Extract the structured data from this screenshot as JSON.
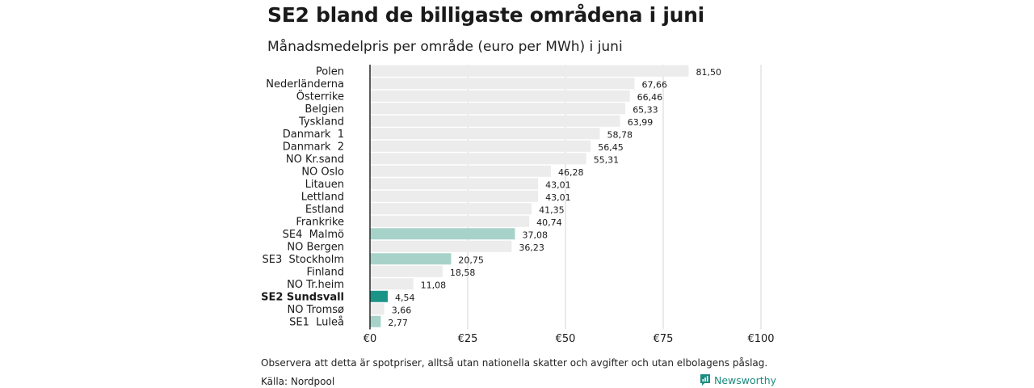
{
  "header": {
    "title": "SE2 bland de billigaste områdena i juni",
    "subtitle": "Månadsmedelpris per område (euro per MWh) i juni"
  },
  "footer": {
    "note": "Observera att detta är spotpriser, alltså utan nationella skatter och avgifter och utan elbolagens påslag.",
    "source": "Källa: Nordpool",
    "brand": "Newsworthy",
    "brand_icon": "newsworthy-logo-icon"
  },
  "colors": {
    "default_bar": "#ececec",
    "se_bar": "#a7d2c9",
    "highlight_bar": "#1b9488",
    "grid": "#d6d6d6",
    "axis": "#1a1a1a"
  },
  "chart_data": {
    "type": "bar",
    "orientation": "horizontal",
    "title": "SE2 bland de billigaste områdena i juni",
    "subtitle": "Månadsmedelpris per område (euro per MWh) i juni",
    "categories": [
      "Polen",
      "Nederländerna",
      "Österrike",
      "Belgien",
      "Tyskland",
      "Danmark  1",
      "Danmark  2",
      "NO Kr.sand",
      "NO Oslo",
      "Litauen",
      "Lettland",
      "Estland",
      "Frankrike",
      "SE4  Malmö",
      "NO Bergen",
      "SE3  Stockholm",
      "Finland",
      "NO Tr.heim",
      "SE2 Sundsvall",
      "NO Tromsø",
      "SE1  Luleå"
    ],
    "values": [
      81.5,
      67.66,
      66.46,
      65.33,
      63.99,
      58.78,
      56.45,
      55.31,
      46.28,
      43.01,
      43.01,
      41.35,
      40.74,
      37.08,
      36.23,
      20.75,
      18.58,
      11.08,
      4.54,
      3.66,
      2.77
    ],
    "value_labels": [
      "81,50",
      "67,66",
      "66,46",
      "65,33",
      "63,99",
      "58,78",
      "56,45",
      "55,31",
      "46,28",
      "43,01",
      "43,01",
      "41,35",
      "40,74",
      "37,08",
      "36,23",
      "20,75",
      "18,58",
      "11,08",
      "4,54",
      "3,66",
      "2,77"
    ],
    "highlight": [
      "none",
      "none",
      "none",
      "none",
      "none",
      "none",
      "none",
      "none",
      "none",
      "none",
      "none",
      "none",
      "none",
      "se",
      "none",
      "se",
      "none",
      "none",
      "main",
      "none",
      "se"
    ],
    "xlim": [
      0,
      100
    ],
    "xticks": [
      0,
      25,
      50,
      75,
      100
    ],
    "xtick_labels": [
      "€0",
      "€25",
      "€50",
      "€75",
      "€100"
    ],
    "grid": true
  }
}
